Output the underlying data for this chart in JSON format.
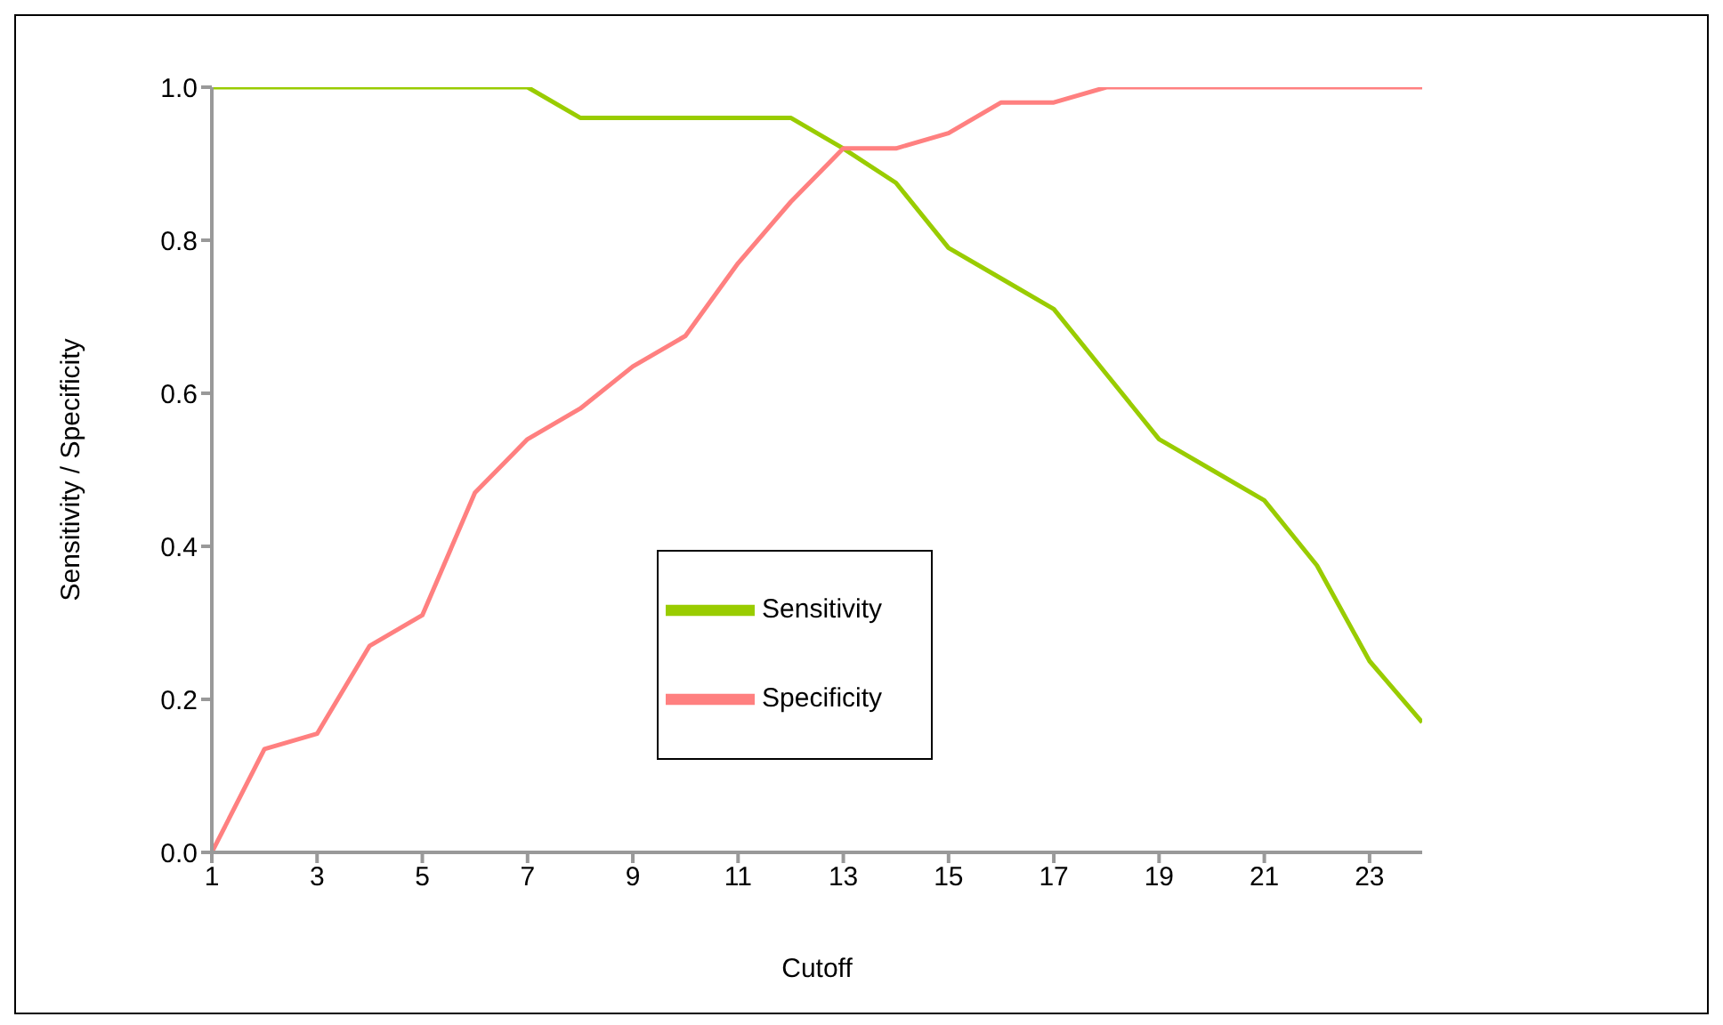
{
  "chart_data": {
    "type": "line",
    "xlabel": "Cutoff",
    "ylabel": "Sensitivity / Specificity",
    "x": [
      1,
      2,
      3,
      4,
      5,
      6,
      7,
      8,
      9,
      10,
      11,
      12,
      13,
      14,
      15,
      16,
      17,
      18,
      19,
      20,
      21,
      22,
      23,
      24
    ],
    "series": [
      {
        "name": "Sensitivity",
        "color": "#99cc00",
        "values": [
          1,
          1,
          1,
          1,
          1,
          1,
          1,
          0.96,
          0.96,
          0.96,
          0.96,
          0.96,
          0.92,
          0.875,
          0.79,
          0.75,
          0.71,
          0.625,
          0.54,
          0.5,
          0.46,
          0.375,
          0.25,
          0.17
        ]
      },
      {
        "name": "Specificity",
        "color": "#ff8080",
        "values": [
          0,
          0.135,
          0.155,
          0.27,
          0.31,
          0.47,
          0.54,
          0.58,
          0.635,
          0.675,
          0.77,
          0.85,
          0.92,
          0.92,
          0.94,
          0.98,
          0.98,
          1,
          1,
          1,
          1,
          1,
          1,
          1
        ]
      }
    ],
    "xlim": [
      1,
      24
    ],
    "xticks": [
      1,
      3,
      5,
      7,
      9,
      11,
      13,
      15,
      17,
      19,
      21,
      23
    ],
    "ylim": [
      0,
      1
    ],
    "yticks": [
      {
        "value": 0,
        "label": "0.0"
      },
      {
        "value": 0.2,
        "label": "0.2"
      },
      {
        "value": 0.4,
        "label": "0.4"
      },
      {
        "value": 0.6,
        "label": "0.6"
      },
      {
        "value": 0.8,
        "label": "0.8"
      },
      {
        "value": 1,
        "label": "1.0"
      }
    ],
    "grid": false,
    "legend": "center",
    "marker": "none",
    "line_style": "solid"
  }
}
